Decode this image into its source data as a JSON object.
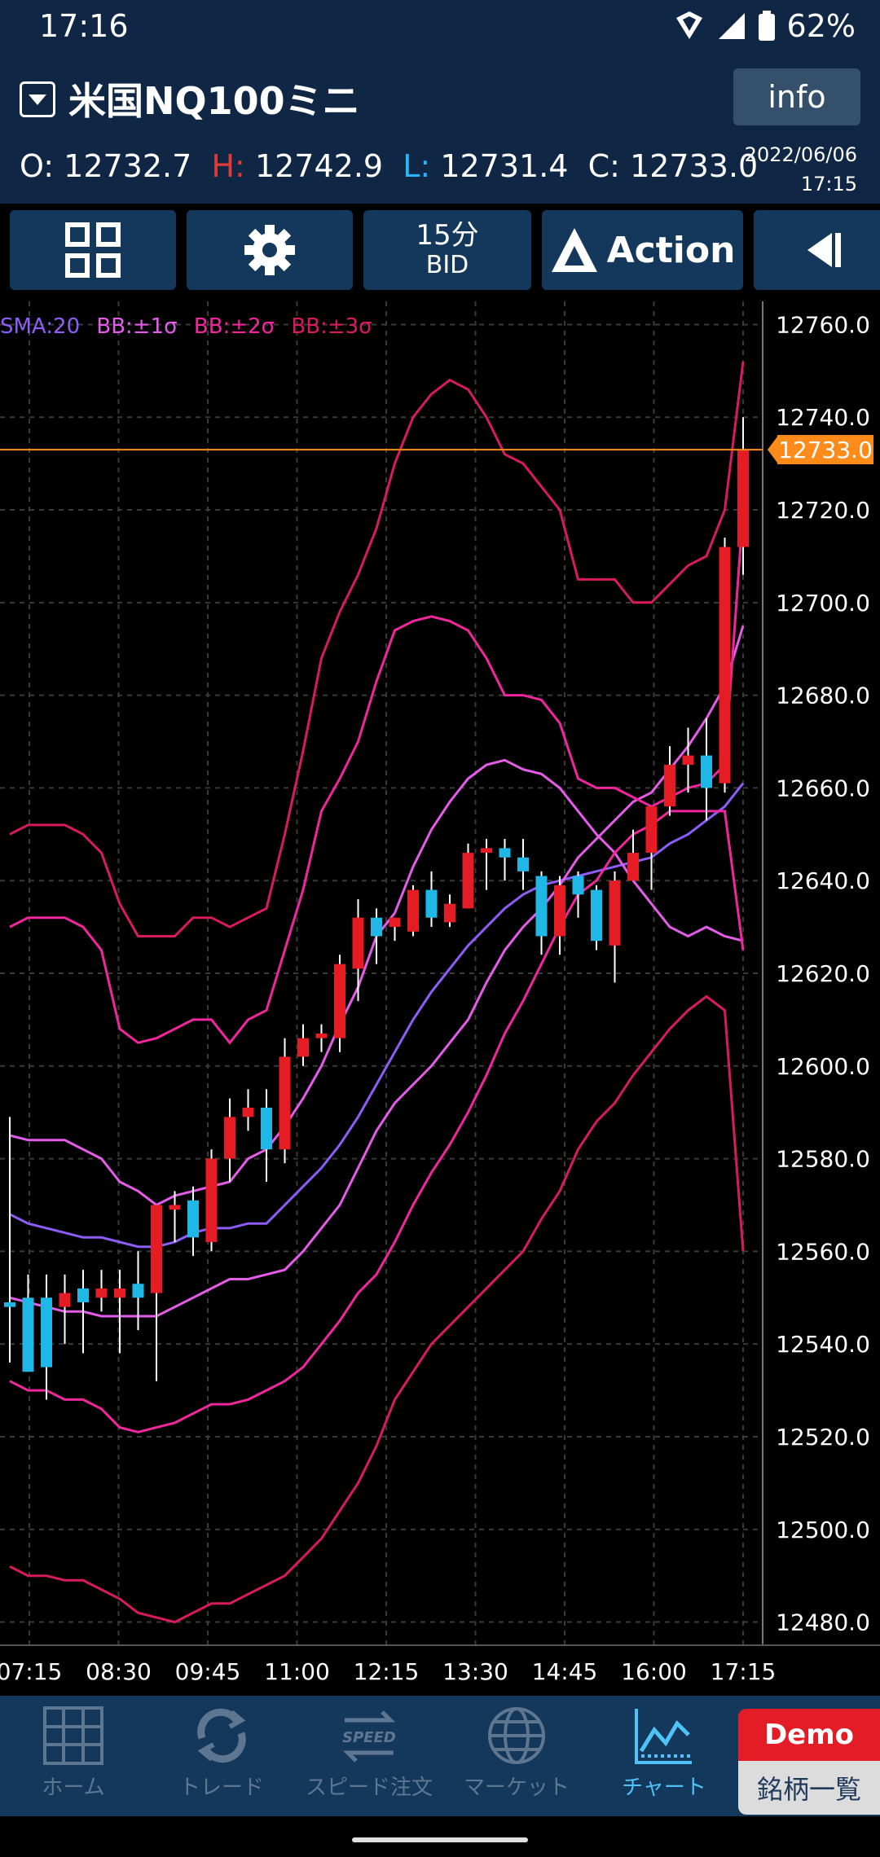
{
  "status_bar": {
    "time": "17:16",
    "battery": "62%",
    "icons": [
      "wifi-icon",
      "signal-icon",
      "battery-icon"
    ]
  },
  "header": {
    "symbol_title": "米国NQ100ミニ",
    "info_label": "info",
    "ohlc": {
      "o_label": "O:",
      "o_value": "12732.7",
      "h_label": "H:",
      "h_value": "12742.9",
      "l_label": "L:",
      "l_value": "12731.4",
      "c_label": "C:",
      "c_value": "12733.0"
    },
    "date": "2022/06/06",
    "time": "17:15"
  },
  "toolbar": {
    "grid_icon": "grid-icon",
    "settings_icon": "gear-icon",
    "timeframe": "15分",
    "price_type": "BID",
    "action_label": "Action",
    "play_icon": "play-back-icon"
  },
  "legend": {
    "sma": "SMA:20",
    "bb1": "BB:±1σ",
    "bb2": "BB:±2σ",
    "bb3": "BB:±3σ"
  },
  "colors": {
    "sma": "#8e5cf7",
    "bb1": "#e45ce8",
    "bb2": "#f0279c",
    "bb3": "#d81b60",
    "up": "#e51c23",
    "down": "#1eb7e6",
    "price_line": "#ff8c1a",
    "header_bg": "#0f2744",
    "nav_bg": "#14385c"
  },
  "chart_data": {
    "type": "candlestick",
    "ylim": [
      12475,
      12765
    ],
    "y_ticks": [
      "12760.0",
      "12740.0",
      "12720.0",
      "12700.0",
      "12680.0",
      "12660.0",
      "12640.0",
      "12620.0",
      "12600.0",
      "12580.0",
      "12560.0",
      "12540.0",
      "12520.0",
      "12500.0",
      "12480.0"
    ],
    "x_ticks": [
      "07:15",
      "08:30",
      "09:45",
      "11:00",
      "12:15",
      "13:30",
      "14:45",
      "16:00",
      "17:15"
    ],
    "current_price": "12733.0",
    "candles": [
      {
        "o": 12549,
        "h": 12589,
        "l": 12536,
        "c": 12548
      },
      {
        "o": 12550,
        "h": 12555,
        "l": 12534,
        "c": 12534
      },
      {
        "o": 12550,
        "h": 12555,
        "l": 12528,
        "c": 12535
      },
      {
        "o": 12548,
        "h": 12555,
        "l": 12540,
        "c": 12551
      },
      {
        "o": 12552,
        "h": 12556,
        "l": 12538,
        "c": 12549
      },
      {
        "o": 12550,
        "h": 12556,
        "l": 12547,
        "c": 12552
      },
      {
        "o": 12550,
        "h": 12556,
        "l": 12538,
        "c": 12552
      },
      {
        "o": 12553,
        "h": 12560,
        "l": 12543,
        "c": 12550
      },
      {
        "o": 12551,
        "h": 12570,
        "l": 12532,
        "c": 12570
      },
      {
        "o": 12569,
        "h": 12573,
        "l": 12562,
        "c": 12570
      },
      {
        "o": 12571,
        "h": 12574,
        "l": 12559,
        "c": 12563
      },
      {
        "o": 12562,
        "h": 12582,
        "l": 12560,
        "c": 12580
      },
      {
        "o": 12580,
        "h": 12593,
        "l": 12575,
        "c": 12589
      },
      {
        "o": 12589,
        "h": 12595,
        "l": 12586,
        "c": 12591
      },
      {
        "o": 12591,
        "h": 12595,
        "l": 12575,
        "c": 12582
      },
      {
        "o": 12582,
        "h": 12606,
        "l": 12579,
        "c": 12602
      },
      {
        "o": 12602,
        "h": 12609,
        "l": 12600,
        "c": 12606
      },
      {
        "o": 12606,
        "h": 12609,
        "l": 12603,
        "c": 12607
      },
      {
        "o": 12606,
        "h": 12624,
        "l": 12603,
        "c": 12622
      },
      {
        "o": 12621,
        "h": 12636,
        "l": 12614,
        "c": 12632
      },
      {
        "o": 12632,
        "h": 12634,
        "l": 12622,
        "c": 12628
      },
      {
        "o": 12630,
        "h": 12632,
        "l": 12627,
        "c": 12632
      },
      {
        "o": 12629,
        "h": 12639,
        "l": 12628,
        "c": 12638
      },
      {
        "o": 12638,
        "h": 12642,
        "l": 12630,
        "c": 12632
      },
      {
        "o": 12631,
        "h": 12637,
        "l": 12630,
        "c": 12635
      },
      {
        "o": 12634,
        "h": 12648,
        "l": 12634,
        "c": 12646
      },
      {
        "o": 12646,
        "h": 12649,
        "l": 12638,
        "c": 12647
      },
      {
        "o": 12647,
        "h": 12649,
        "l": 12640,
        "c": 12645
      },
      {
        "o": 12645,
        "h": 12649,
        "l": 12638,
        "c": 12642
      },
      {
        "o": 12641,
        "h": 12642,
        "l": 12624,
        "c": 12628
      },
      {
        "o": 12628,
        "h": 12641,
        "l": 12624,
        "c": 12639
      },
      {
        "o": 12641,
        "h": 12642,
        "l": 12632,
        "c": 12637
      },
      {
        "o": 12638,
        "h": 12639,
        "l": 12625,
        "c": 12627
      },
      {
        "o": 12626,
        "h": 12642,
        "l": 12618,
        "c": 12640
      },
      {
        "o": 12640,
        "h": 12651,
        "l": 12640,
        "c": 12646
      },
      {
        "o": 12646,
        "h": 12656,
        "l": 12638,
        "c": 12656
      },
      {
        "o": 12656,
        "h": 12669,
        "l": 12654,
        "c": 12665
      },
      {
        "o": 12665,
        "h": 12673,
        "l": 12659,
        "c": 12667
      },
      {
        "o": 12667,
        "h": 12675,
        "l": 12653,
        "c": 12660
      },
      {
        "o": 12661,
        "h": 12714,
        "l": 12659,
        "c": 12712
      },
      {
        "o": 12712,
        "h": 12740,
        "l": 12706,
        "c": 12733
      }
    ],
    "series": [
      {
        "key": "sma",
        "values": [
          12568,
          12566,
          12565,
          12564,
          12563,
          12563,
          12562,
          12561,
          12561,
          12562,
          12564,
          12565,
          12565,
          12566,
          12566,
          12570,
          12574,
          12578,
          12583,
          12589,
          12596,
          12603,
          12610,
          12616,
          12621,
          12626,
          12630,
          12634,
          12637,
          12639,
          12640,
          12641,
          12642,
          12643,
          12644,
          12645,
          12648,
          12650,
          12653,
          12656,
          12661
        ]
      },
      {
        "key": "bb1p",
        "values": [
          12585,
          12584,
          12584,
          12584,
          12582,
          12580,
          12575,
          12573,
          12570,
          12572,
          12573,
          12574,
          12575,
          12580,
          12582,
          12587,
          12593,
          12600,
          12609,
          12617,
          12628,
          12633,
          12643,
          12651,
          12657,
          12662,
          12665,
          12666,
          12664,
          12663,
          12660,
          12655,
          12650,
          12646,
          12640,
          12635,
          12630,
          12628,
          12630,
          12628,
          12627
        ]
      },
      {
        "key": "bb1m",
        "values": [
          12550,
          12549,
          12548,
          12547,
          12547,
          12546,
          12546,
          12546,
          12546,
          12548,
          12550,
          12552,
          12554,
          12554,
          12555,
          12556,
          12560,
          12565,
          12570,
          12578,
          12586,
          12592,
          12596,
          12600,
          12605,
          12610,
          12618,
          12625,
          12630,
          12634,
          12639,
          12645,
          12649,
          12653,
          12657,
          12659,
          12664,
          12669,
          12675,
          12682,
          12695
        ]
      },
      {
        "key": "bb2p",
        "values": [
          12630,
          12632,
          12632,
          12632,
          12630,
          12625,
          12608,
          12605,
          12606,
          12608,
          12610,
          12610,
          12605,
          12610,
          12612,
          12625,
          12638,
          12655,
          12662,
          12670,
          12683,
          12694,
          12696,
          12697,
          12696,
          12694,
          12688,
          12680,
          12680,
          12679,
          12674,
          12662,
          12660,
          12660,
          12658,
          12656,
          12658,
          12660,
          12661,
          12665,
          12720
        ]
      },
      {
        "key": "bb2m",
        "values": [
          12532,
          12530,
          12530,
          12528,
          12528,
          12526,
          12522,
          12521,
          12522,
          12523,
          12525,
          12527,
          12527,
          12528,
          12530,
          12532,
          12535,
          12540,
          12545,
          12551,
          12555,
          12562,
          12570,
          12577,
          12583,
          12590,
          12598,
          12607,
          12614,
          12622,
          12630,
          12637,
          12640,
          12646,
          12650,
          12652,
          12655,
          12655,
          12655,
          12655,
          12625
        ]
      },
      {
        "key": "bb3p",
        "values": [
          12650,
          12652,
          12652,
          12652,
          12650,
          12646,
          12635,
          12628,
          12628,
          12628,
          12632,
          12632,
          12630,
          12632,
          12634,
          12650,
          12668,
          12688,
          12698,
          12706,
          12716,
          12730,
          12740,
          12745,
          12748,
          12746,
          12740,
          12732,
          12730,
          12725,
          12720,
          12705,
          12705,
          12705,
          12700,
          12700,
          12704,
          12708,
          12710,
          12720,
          12752
        ]
      },
      {
        "key": "bb3m",
        "values": [
          12492,
          12490,
          12490,
          12489,
          12489,
          12487,
          12485,
          12482,
          12481,
          12480,
          12482,
          12484,
          12484,
          12486,
          12488,
          12490,
          12494,
          12498,
          12504,
          12510,
          12518,
          12528,
          12534,
          12540,
          12544,
          12548,
          12552,
          12556,
          12560,
          12567,
          12573,
          12582,
          12588,
          12592,
          12598,
          12603,
          12608,
          12612,
          12615,
          12612,
          12560
        ]
      }
    ]
  },
  "nav": {
    "items": [
      {
        "label": "ホーム",
        "icon": "home-grid-icon"
      },
      {
        "label": "トレード",
        "icon": "trade-refresh-icon"
      },
      {
        "label": "スピード注文",
        "icon": "speed-order-icon"
      },
      {
        "label": "マーケット",
        "icon": "globe-icon"
      },
      {
        "label": "チャート",
        "icon": "chart-icon"
      }
    ],
    "demo_top": "Demo",
    "demo_bottom": "銘柄一覧"
  }
}
